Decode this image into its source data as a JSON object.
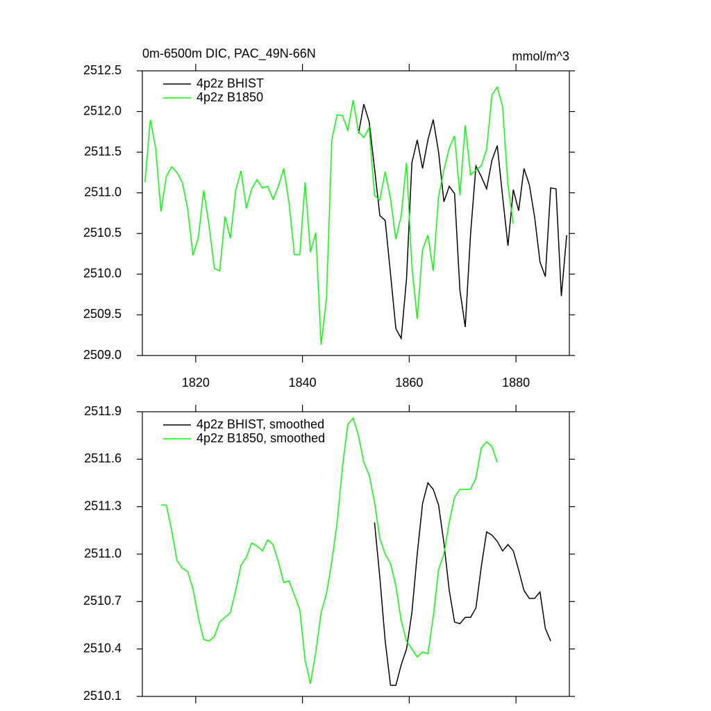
{
  "chart_data": [
    {
      "type": "line",
      "title": "0m-6500m DIC, PAC_49N-66N",
      "subtitle": "mmol/m^3",
      "xlim": [
        1810,
        1890
      ],
      "xticks": [
        1820,
        1840,
        1860,
        1880
      ],
      "ylim": [
        2509,
        2512.5
      ],
      "yticks": [
        {
          "value": 2509,
          "label": "2509.0"
        },
        2509.5,
        {
          "value": 2510,
          "label": "2510.0"
        },
        2510.5,
        {
          "value": 2511,
          "label": "2511.0"
        },
        2511.5,
        {
          "value": 2512,
          "label": "2512.0"
        },
        2512.5
      ],
      "legend": "top-left",
      "series": [
        {
          "name": "4p2z BHIST",
          "color": "#000000",
          "x": [
            1850.5,
            1851.5,
            1852.5,
            1853.5,
            1854.5,
            1855.5,
            1856.5,
            1857.5,
            1858.5,
            1859.5,
            1860.5,
            1861.5,
            1862.5,
            1863.5,
            1864.5,
            1865.5,
            1866.5,
            1867.5,
            1868.5,
            1869.5,
            1870.5,
            1871.5,
            1872.5,
            1873.5,
            1874.5,
            1875.5,
            1876.5,
            1877.5,
            1878.5,
            1879.5,
            1880.5,
            1881.5,
            1882.5,
            1883.5,
            1884.5,
            1885.5,
            1886.5,
            1887.5,
            1888.5,
            1889.5
          ],
          "values": [
            2511.73,
            2512.09,
            2511.87,
            2511.3,
            2510.72,
            2510.66,
            2510.0,
            2509.33,
            2509.21,
            2509.95,
            2511.37,
            2511.65,
            2511.3,
            2511.65,
            2511.9,
            2511.5,
            2510.89,
            2511.08,
            2510.99,
            2509.8,
            2509.35,
            2510.5,
            2511.33,
            2511.2,
            2511.05,
            2511.4,
            2511.58,
            2510.95,
            2510.35,
            2511.04,
            2510.78,
            2511.3,
            2511.1,
            2510.7,
            2510.15,
            2509.97,
            2511.06,
            2511.05,
            2509.73,
            2510.48
          ]
        },
        {
          "name": "4p2z B1850",
          "color": "#00ff00",
          "x": [
            1810.5,
            1811.5,
            1812.5,
            1813.5,
            1814.5,
            1815.5,
            1816.5,
            1817.5,
            1818.5,
            1819.5,
            1820.5,
            1821.5,
            1822.5,
            1823.5,
            1824.5,
            1825.5,
            1826.5,
            1827.5,
            1828.5,
            1829.5,
            1830.5,
            1831.5,
            1832.5,
            1833.5,
            1834.5,
            1835.5,
            1836.5,
            1837.5,
            1838.5,
            1839.5,
            1840.5,
            1841.5,
            1842.5,
            1843.5,
            1844.5,
            1845.5,
            1846.5,
            1847.5,
            1848.5,
            1849.5,
            1850.5,
            1851.5,
            1852.5,
            1853.5,
            1854.5,
            1855.5,
            1856.5,
            1857.5,
            1858.5,
            1859.5,
            1860.5,
            1861.5,
            1862.5,
            1863.5,
            1864.5,
            1865.5,
            1866.5,
            1867.5,
            1868.5,
            1869.5,
            1870.5,
            1871.5,
            1872.5,
            1873.5,
            1874.5,
            1875.5,
            1876.5,
            1877.5,
            1878.5,
            1879.5
          ],
          "values": [
            2511.13,
            2511.9,
            2511.55,
            2510.77,
            2511.2,
            2511.32,
            2511.25,
            2511.13,
            2510.8,
            2510.23,
            2510.45,
            2511.03,
            2510.6,
            2510.07,
            2510.04,
            2510.71,
            2510.44,
            2511.03,
            2511.27,
            2510.81,
            2511.05,
            2511.16,
            2511.06,
            2511.08,
            2510.92,
            2511.08,
            2511.3,
            2510.87,
            2510.24,
            2510.24,
            2511.13,
            2510.27,
            2510.51,
            2509.13,
            2509.7,
            2511.65,
            2511.96,
            2511.95,
            2511.77,
            2512.14,
            2511.75,
            2511.68,
            2511.8,
            2510.97,
            2510.91,
            2511.26,
            2510.93,
            2510.43,
            2510.72,
            2511.37,
            2510.1,
            2509.45,
            2510.3,
            2510.48,
            2510.04,
            2510.95,
            2511.28,
            2511.55,
            2511.7,
            2510.97,
            2511.83,
            2511.22,
            2511.28,
            2511.33,
            2511.53,
            2512.2,
            2512.3,
            2512.06,
            2511.1,
            2510.62
          ]
        }
      ]
    },
    {
      "type": "line",
      "xlim": [
        1810,
        1890
      ],
      "xticks": [
        1820,
        1840,
        1860,
        1880
      ],
      "ylim": [
        2510.1,
        2511.9
      ],
      "yticks": [
        2510.1,
        2510.4,
        2510.7,
        {
          "value": 2511,
          "label": "2511.0"
        },
        2511.3,
        2511.6,
        2511.9
      ],
      "legend": "top-left",
      "series": [
        {
          "name": "4p2z BHIST, smoothed",
          "color": "#000000",
          "x": [
            1853.5,
            1854.5,
            1855.5,
            1856.5,
            1857.5,
            1858.5,
            1859.5,
            1860.5,
            1861.5,
            1862.5,
            1863.5,
            1864.5,
            1865.5,
            1866.5,
            1867.5,
            1868.5,
            1869.5,
            1870.5,
            1871.5,
            1872.5,
            1873.5,
            1874.5,
            1875.5,
            1876.5,
            1877.5,
            1878.5,
            1879.5,
            1880.5,
            1881.5,
            1882.5,
            1883.5,
            1884.5,
            1885.5,
            1886.5
          ],
          "values": [
            2511.2,
            2510.85,
            2510.45,
            2510.17,
            2510.17,
            2510.3,
            2510.4,
            2510.63,
            2511.0,
            2511.32,
            2511.45,
            2511.41,
            2511.31,
            2511.07,
            2510.77,
            2510.57,
            2510.56,
            2510.6,
            2510.6,
            2510.66,
            2510.92,
            2511.14,
            2511.12,
            2511.08,
            2511.02,
            2511.06,
            2511.02,
            2510.9,
            2510.77,
            2510.72,
            2510.72,
            2510.76,
            2510.53,
            2510.45
          ]
        },
        {
          "name": "4p2z B1850, smoothed",
          "color": "#00ff00",
          "x": [
            1813.5,
            1814.5,
            1815.5,
            1816.5,
            1817.5,
            1818.5,
            1819.5,
            1820.5,
            1821.5,
            1822.5,
            1823.5,
            1824.5,
            1825.5,
            1826.5,
            1827.5,
            1828.5,
            1829.5,
            1830.5,
            1831.5,
            1832.5,
            1833.5,
            1834.5,
            1835.5,
            1836.5,
            1837.5,
            1838.5,
            1839.5,
            1840.5,
            1841.5,
            1842.5,
            1843.5,
            1844.5,
            1845.5,
            1846.5,
            1847.5,
            1848.5,
            1849.5,
            1850.5,
            1851.5,
            1852.5,
            1853.5,
            1854.5,
            1855.5,
            1856.5,
            1857.5,
            1858.5,
            1859.5,
            1860.5,
            1861.5,
            1862.5,
            1863.5,
            1864.5,
            1865.5,
            1866.5,
            1867.5,
            1868.5,
            1869.5,
            1870.5,
            1871.5,
            1872.5,
            1873.5,
            1874.5,
            1875.5,
            1876.5
          ],
          "values": [
            2511.31,
            2511.31,
            2511.15,
            2510.96,
            2510.91,
            2510.89,
            2510.78,
            2510.6,
            2510.46,
            2510.45,
            2510.48,
            2510.57,
            2510.6,
            2510.63,
            2510.77,
            2510.93,
            2510.98,
            2511.07,
            2511.05,
            2511.02,
            2511.09,
            2511.06,
            2510.95,
            2510.82,
            2510.83,
            2510.74,
            2510.65,
            2510.33,
            2510.18,
            2510.38,
            2510.63,
            2510.75,
            2510.95,
            2511.2,
            2511.55,
            2511.82,
            2511.86,
            2511.75,
            2511.58,
            2511.5,
            2511.33,
            2511.1,
            2511.0,
            2510.94,
            2510.8,
            2510.58,
            2510.45,
            2510.4,
            2510.35,
            2510.38,
            2510.37,
            2510.6,
            2510.9,
            2511.0,
            2511.2,
            2511.36,
            2511.41,
            2511.41,
            2511.41,
            2511.48,
            2511.67,
            2511.71,
            2511.68,
            2511.58
          ]
        }
      ]
    }
  ]
}
